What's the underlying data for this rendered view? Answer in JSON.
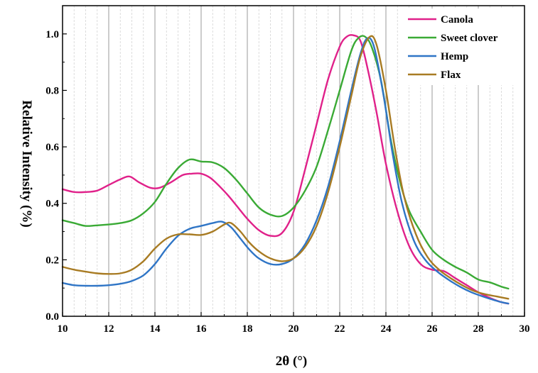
{
  "chart_data": {
    "type": "line",
    "title": "",
    "xlabel": "2θ (°)",
    "ylabel": "Relative Intensity (%)",
    "xlim": [
      10,
      30
    ],
    "ylim": [
      0.0,
      1.1
    ],
    "xticks": [
      10,
      12,
      14,
      16,
      18,
      20,
      22,
      24,
      26,
      28,
      30
    ],
    "yticks": [
      0.0,
      0.2,
      0.4,
      0.6,
      0.8,
      1.0
    ],
    "xtick_labels": [
      "10",
      "12",
      "14",
      "16",
      "18",
      "20",
      "22",
      "24",
      "26",
      "28",
      "30"
    ],
    "ytick_labels": [
      "0.0",
      "0.2",
      "0.4",
      "0.6",
      "0.8",
      "1.0"
    ],
    "grid": true,
    "legend_position": "top-right",
    "series": [
      {
        "name": "Canola",
        "color": "#e0218a",
        "x": [
          10,
          10.5,
          11,
          11.5,
          12,
          12.5,
          12.9,
          13.3,
          13.8,
          14.2,
          14.7,
          15.2,
          15.6,
          16.0,
          16.4,
          16.8,
          17.2,
          17.6,
          18.0,
          18.5,
          19.0,
          19.5,
          20.0,
          20.5,
          21.0,
          21.5,
          22.0,
          22.3,
          22.6,
          22.9,
          23.2,
          23.6,
          24.0,
          24.5,
          25.0,
          25.5,
          26.0,
          26.5,
          27.0,
          27.5,
          28.0,
          28.5,
          29.0,
          29.3
        ],
        "y": [
          0.45,
          0.44,
          0.44,
          0.445,
          0.465,
          0.485,
          0.495,
          0.475,
          0.455,
          0.455,
          0.475,
          0.5,
          0.505,
          0.505,
          0.49,
          0.46,
          0.425,
          0.385,
          0.345,
          0.305,
          0.285,
          0.295,
          0.37,
          0.52,
          0.68,
          0.84,
          0.955,
          0.99,
          0.995,
          0.975,
          0.88,
          0.72,
          0.54,
          0.37,
          0.25,
          0.185,
          0.165,
          0.16,
          0.135,
          0.11,
          0.085,
          0.065,
          0.05,
          0.045
        ]
      },
      {
        "name": "Sweet clover",
        "color": "#3aaa35",
        "x": [
          10,
          10.5,
          11,
          11.5,
          12,
          12.5,
          13.0,
          13.5,
          14.0,
          14.5,
          15.0,
          15.5,
          16.0,
          16.5,
          17.0,
          17.5,
          18.0,
          18.5,
          19.0,
          19.5,
          20.0,
          20.5,
          21.0,
          21.5,
          22.0,
          22.5,
          22.8,
          23.1,
          23.4,
          23.8,
          24.2,
          24.6,
          25.0,
          25.5,
          26.0,
          26.5,
          27.0,
          27.5,
          28.0,
          28.5,
          29.0,
          29.3
        ],
        "y": [
          0.34,
          0.33,
          0.32,
          0.322,
          0.325,
          0.33,
          0.34,
          0.365,
          0.405,
          0.47,
          0.525,
          0.555,
          0.548,
          0.545,
          0.525,
          0.485,
          0.435,
          0.385,
          0.36,
          0.355,
          0.385,
          0.445,
          0.53,
          0.66,
          0.8,
          0.94,
          0.985,
          0.99,
          0.95,
          0.83,
          0.63,
          0.48,
          0.375,
          0.3,
          0.235,
          0.2,
          0.175,
          0.155,
          0.13,
          0.12,
          0.105,
          0.098
        ]
      },
      {
        "name": "Hemp",
        "color": "#2f75c6",
        "x": [
          10,
          10.5,
          11,
          11.5,
          12,
          12.5,
          13.0,
          13.5,
          14.0,
          14.5,
          15.0,
          15.5,
          16.0,
          16.5,
          16.9,
          17.3,
          17.7,
          18.1,
          18.5,
          19.0,
          19.5,
          20.0,
          20.5,
          21.0,
          21.5,
          22.0,
          22.5,
          22.9,
          23.2,
          23.5,
          23.9,
          24.3,
          24.7,
          25.2,
          25.7,
          26.2,
          26.7,
          27.2,
          27.7,
          28.2,
          28.7,
          29.0,
          29.3
        ],
        "y": [
          0.118,
          0.11,
          0.108,
          0.108,
          0.11,
          0.115,
          0.125,
          0.145,
          0.185,
          0.24,
          0.285,
          0.31,
          0.32,
          0.33,
          0.335,
          0.315,
          0.275,
          0.235,
          0.205,
          0.185,
          0.185,
          0.205,
          0.255,
          0.34,
          0.46,
          0.62,
          0.8,
          0.93,
          0.985,
          0.95,
          0.78,
          0.57,
          0.4,
          0.27,
          0.2,
          0.16,
          0.13,
          0.105,
          0.085,
          0.07,
          0.057,
          0.05,
          0.045
        ]
      },
      {
        "name": "Flax",
        "color": "#a87b23",
        "x": [
          10,
          10.5,
          11,
          11.5,
          12,
          12.5,
          13.0,
          13.5,
          14.0,
          14.5,
          15.0,
          15.5,
          16.0,
          16.5,
          17.0,
          17.3,
          17.7,
          18.1,
          18.5,
          19.0,
          19.5,
          20.0,
          20.5,
          21.0,
          21.5,
          22.0,
          22.5,
          22.9,
          23.3,
          23.6,
          24.0,
          24.4,
          24.8,
          25.3,
          25.8,
          26.3,
          26.8,
          27.3,
          27.8,
          28.3,
          28.8,
          29.3
        ],
        "y": [
          0.175,
          0.165,
          0.158,
          0.152,
          0.15,
          0.152,
          0.165,
          0.195,
          0.24,
          0.275,
          0.29,
          0.29,
          0.288,
          0.3,
          0.325,
          0.33,
          0.3,
          0.26,
          0.23,
          0.205,
          0.195,
          0.205,
          0.245,
          0.32,
          0.44,
          0.6,
          0.78,
          0.92,
          0.99,
          0.96,
          0.8,
          0.59,
          0.42,
          0.29,
          0.21,
          0.165,
          0.135,
          0.11,
          0.09,
          0.078,
          0.07,
          0.062
        ]
      }
    ]
  }
}
